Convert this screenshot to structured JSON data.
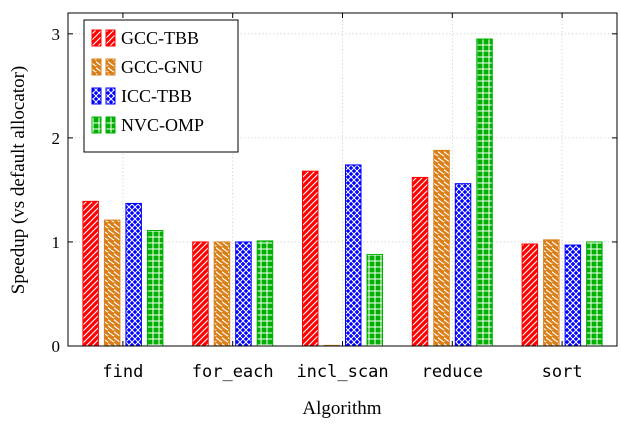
{
  "chart_data": {
    "type": "bar",
    "xlabel": "Algorithm",
    "ylabel": "Speedup (vs default allocator)",
    "categories": [
      "find",
      "for_each",
      "incl_scan",
      "reduce",
      "sort"
    ],
    "ylim": [
      0,
      3.2
    ],
    "yticks": [
      0,
      1,
      2,
      3
    ],
    "grid": true,
    "legend_position": "top-left",
    "series": [
      {
        "name": "GCC-TBB",
        "color": "#ff0000",
        "pattern": "diagonal-lines",
        "values": [
          1.39,
          1.0,
          1.68,
          1.62,
          0.98
        ]
      },
      {
        "name": "GCC-GNU",
        "color": "#d9801a",
        "pattern": "diagonal-lines",
        "values": [
          1.21,
          1.0,
          0.0,
          1.88,
          1.02
        ]
      },
      {
        "name": "ICC-TBB",
        "color": "#0000ff",
        "pattern": "crosshatch-dots",
        "values": [
          1.37,
          1.0,
          1.74,
          1.56,
          0.97
        ]
      },
      {
        "name": "NVC-OMP",
        "color": "#00b000",
        "pattern": "grid",
        "values": [
          1.11,
          1.01,
          0.88,
          2.95,
          1.0
        ]
      }
    ]
  }
}
